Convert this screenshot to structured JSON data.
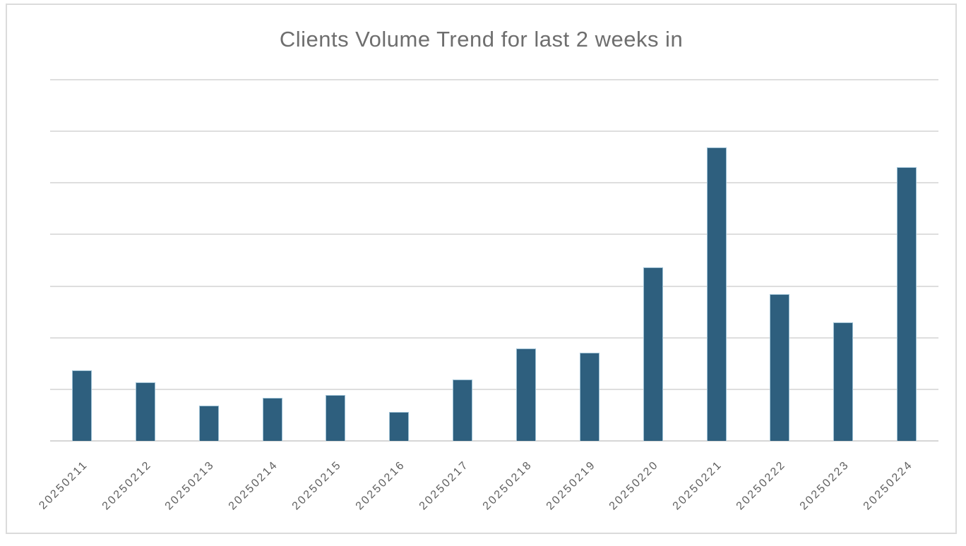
{
  "chart_data": {
    "type": "bar",
    "title": "Clients Volume Trend for last 2 weeks in",
    "categories": [
      "20250211",
      "20250212",
      "20250213",
      "20250214",
      "20250215",
      "20250216",
      "20250217",
      "20250218",
      "20250219",
      "20250220",
      "20250221",
      "20250222",
      "20250223",
      "20250224"
    ],
    "values": [
      137,
      113,
      68,
      84,
      89,
      56,
      119,
      179,
      171,
      336,
      569,
      284,
      230,
      531
    ],
    "xlabel": "",
    "ylabel": "",
    "ylim": [
      0,
      700
    ],
    "gridline_step": 100,
    "grid": "horizontal",
    "legend_position": "none",
    "y_axis_tick_labels": "hidden",
    "x_label_rotation_deg": 45,
    "colors": {
      "bar_fill": "#2E5F7E",
      "bar_border": "#9CC0D4",
      "gridline": "#DEDEDE",
      "axis_line": "#D6D6D6",
      "title_text": "#6E6E6E",
      "axis_label_text": "#5F5F5F",
      "chart_border": "#DBDBDB",
      "background": "#FFFFFF"
    }
  }
}
